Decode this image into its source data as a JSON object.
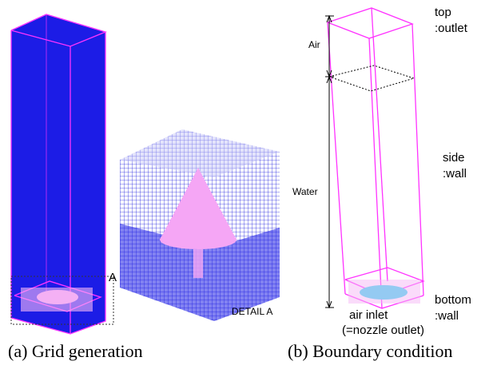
{
  "panel_a": {
    "callout": "A",
    "detail_label": "DETAIL A",
    "caption": "(a) Grid generation"
  },
  "panel_b": {
    "top": "top",
    "top_type": ":outlet",
    "air": "Air",
    "water": "Water",
    "side": "side",
    "side_type": ":wall",
    "bottom": "bottom",
    "bottom_type": ":wall",
    "inlet": "air inlet",
    "inlet_note": "(=nozzle outlet)",
    "caption": "(b) Boundary condition"
  }
}
